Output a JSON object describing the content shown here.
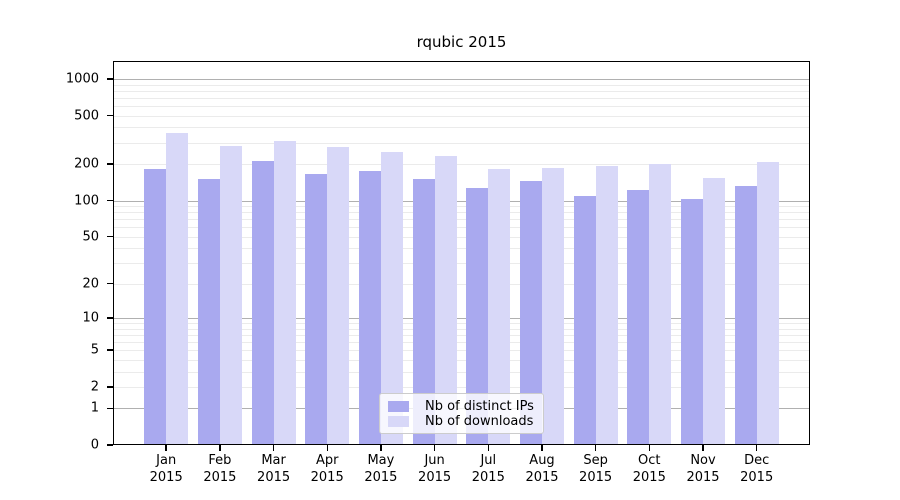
{
  "chart_data": {
    "type": "bar",
    "title": "rqubic 2015",
    "xlabel": "",
    "ylabel": "",
    "year": "2015",
    "months": [
      "Jan",
      "Feb",
      "Mar",
      "Apr",
      "May",
      "Jun",
      "Jul",
      "Aug",
      "Sep",
      "Oct",
      "Nov",
      "Dec"
    ],
    "categories": [
      "Jan 2015",
      "Feb 2015",
      "Mar 2015",
      "Apr 2015",
      "May 2015",
      "Jun 2015",
      "Jul 2015",
      "Aug 2015",
      "Sep 2015",
      "Oct 2015",
      "Nov 2015",
      "Dec 2015"
    ],
    "series": [
      {
        "name": "Nb of distinct IPs",
        "color": "#a9a9ef",
        "values": [
          182,
          150,
          210,
          167,
          174,
          152,
          127,
          145,
          108,
          123,
          103,
          131
        ]
      },
      {
        "name": "Nb of downloads",
        "color": "#d8d8f8",
        "values": [
          358,
          282,
          309,
          276,
          252,
          234,
          183,
          187,
          194,
          202,
          154,
          209
        ]
      }
    ],
    "y_scale": "log10(1+x)",
    "y_ticks": [
      0,
      1,
      2,
      5,
      10,
      20,
      50,
      100,
      200,
      500,
      1000
    ],
    "major_grid_values": [
      1,
      10,
      100,
      1000
    ],
    "minor_grid_values": [
      2,
      3,
      4,
      5,
      6,
      7,
      8,
      9,
      20,
      30,
      40,
      50,
      60,
      70,
      80,
      90,
      200,
      300,
      400,
      500,
      600,
      700,
      800,
      900
    ],
    "ylim": [
      0,
      1400
    ],
    "grid": true,
    "legend_position": "lower center inside",
    "colors": {
      "minor_grid": "#ebebeb",
      "major_grid": "#b0b0b0",
      "spine": "#000000",
      "background": "#ffffff"
    }
  }
}
